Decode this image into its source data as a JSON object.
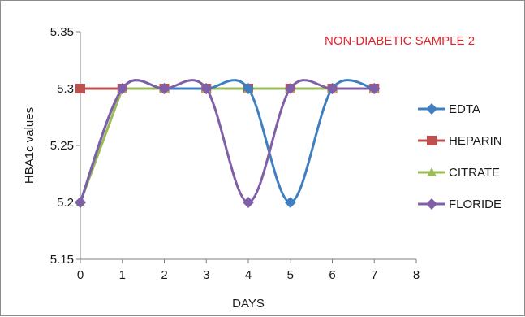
{
  "chart_data": {
    "type": "line",
    "title": "NON-DIABETIC SAMPLE 2",
    "title_color": "#e8242b",
    "xlabel": "DAYS",
    "ylabel": "HBA1c values",
    "xlim": [
      0,
      8
    ],
    "ylim": [
      5.15,
      5.35
    ],
    "x_ticks": [
      0,
      1,
      2,
      3,
      4,
      5,
      6,
      7,
      8
    ],
    "y_ticks": [
      5.15,
      5.2,
      5.25,
      5.3,
      5.35
    ],
    "x_tick_labels": [
      "0",
      "1",
      "2",
      "3",
      "4",
      "5",
      "6",
      "7",
      "8"
    ],
    "y_tick_labels": [
      "5.15",
      "5.2",
      "5.25",
      "5.3",
      "5.35"
    ],
    "grid": false,
    "legend_position": "right",
    "x": [
      0,
      1,
      2,
      3,
      4,
      5,
      6,
      7
    ],
    "series": [
      {
        "name": "EDTA",
        "values": [
          5.2,
          5.3,
          5.3,
          5.3,
          5.3,
          5.2,
          5.3,
          5.3
        ],
        "color": "#3f7fc0",
        "marker": "diamond",
        "smooth": true
      },
      {
        "name": "HEPARIN",
        "values": [
          5.3,
          5.3,
          5.3,
          5.3,
          5.3,
          5.3,
          5.3,
          5.3
        ],
        "color": "#c0504d",
        "marker": "square",
        "smooth": false
      },
      {
        "name": "CITRATE",
        "values": [
          5.2,
          5.3,
          5.3,
          5.3,
          5.3,
          5.3,
          5.3,
          5.3
        ],
        "color": "#9bbb59",
        "marker": "triangle",
        "smooth": false
      },
      {
        "name": "FLORIDE",
        "values": [
          5.2,
          5.3,
          5.3,
          5.3,
          5.2,
          5.3,
          5.3,
          5.3
        ],
        "color": "#7f5fa8",
        "marker": "diamond",
        "smooth": true
      }
    ]
  }
}
